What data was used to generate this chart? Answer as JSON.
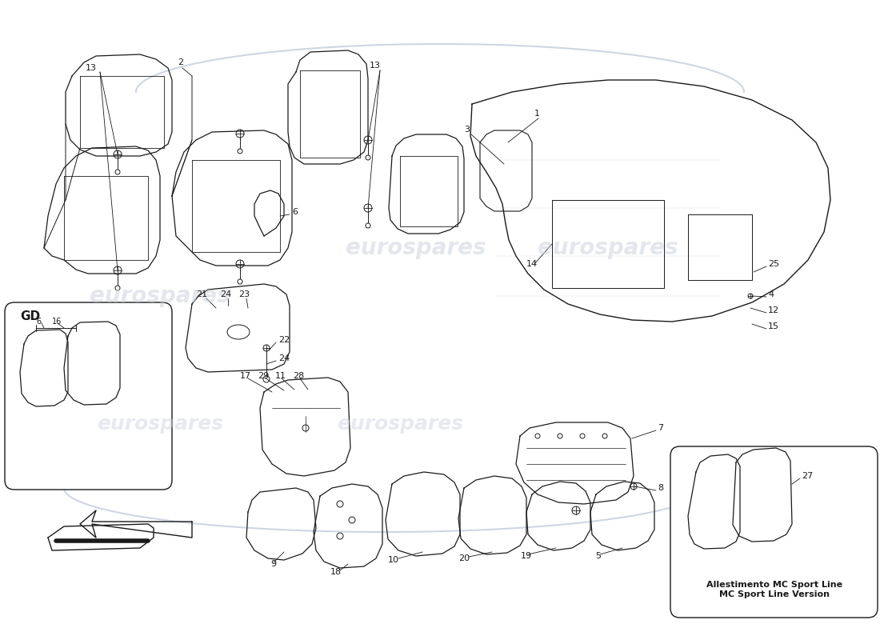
{
  "background_color": "#ffffff",
  "line_color": "#1a1a1a",
  "watermark_text": "eurospares",
  "watermark_color": "#c8d0dc",
  "mc_label": "Allestimento MC Sport Line\nMC Sport Line Version"
}
